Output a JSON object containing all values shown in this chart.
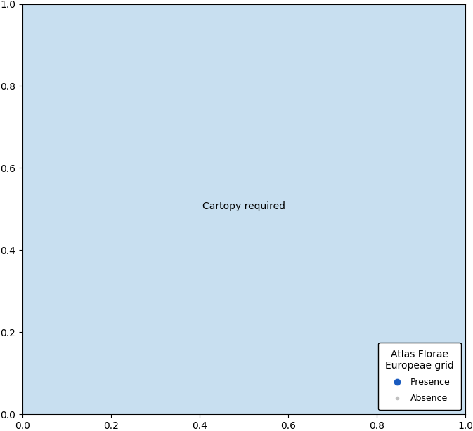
{
  "legend_title": "Atlas Florae\nEuropeae grid",
  "presence_color": "#1a5bbf",
  "absence_color": "#c0c0c0",
  "presence_label": "Presence",
  "absence_label": "Absence",
  "ocean_color": "#c8dff0",
  "land_color": "#ffffff",
  "border_color": "#aaaaaa",
  "map_extent": [
    -25,
    45,
    33,
    72
  ],
  "dot_size_presence": 18,
  "dot_size_absence": 8,
  "grid_step_lon": 1.0,
  "grid_step_lat": 0.5,
  "figsize": [
    6.73,
    6.14
  ],
  "dpi": 100
}
